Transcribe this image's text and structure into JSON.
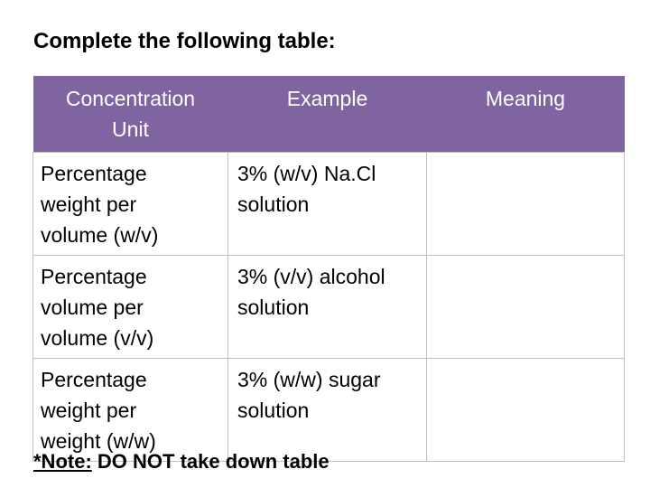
{
  "header": {
    "title": "Complete the following table:"
  },
  "table": {
    "headers": [
      [
        "Concentration",
        "Unit"
      ],
      [
        "Example"
      ],
      [
        "Meaning"
      ]
    ],
    "rows": [
      [
        [
          "Percentage",
          "weight per",
          "volume (w/v)"
        ],
        [
          "3% (w/v) Na.Cl",
          "solution"
        ]
      ],
      [
        [
          "Percentage",
          "volume per",
          "volume (v/v)"
        ],
        [
          "3% (v/v) alcohol",
          "solution"
        ]
      ],
      [
        [
          "Percentage",
          "weight per",
          "weight (w/w)"
        ],
        [
          "3% (w/w) sugar",
          "solution"
        ]
      ]
    ]
  },
  "note": {
    "label": "*Note:",
    "text": "DO NOT take down table"
  }
}
